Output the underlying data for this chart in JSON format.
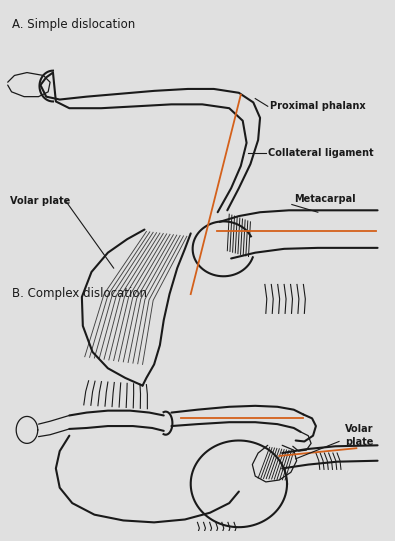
{
  "title_a": "A. Simple dislocation",
  "title_b": "B. Complex dislocation",
  "bg_color": "#e0e0e0",
  "line_color": "#1a1a1a",
  "orange_color": "#d4601a",
  "label_proximal": "Proximal phalanx",
  "label_collateral": "Collateral ligament",
  "label_volar_a": "Volar plate",
  "label_metacarpal": "Metacarpal",
  "label_volar_b": "Volar\nplate",
  "fontsize_title": 8.5,
  "fontsize_label": 7.0
}
